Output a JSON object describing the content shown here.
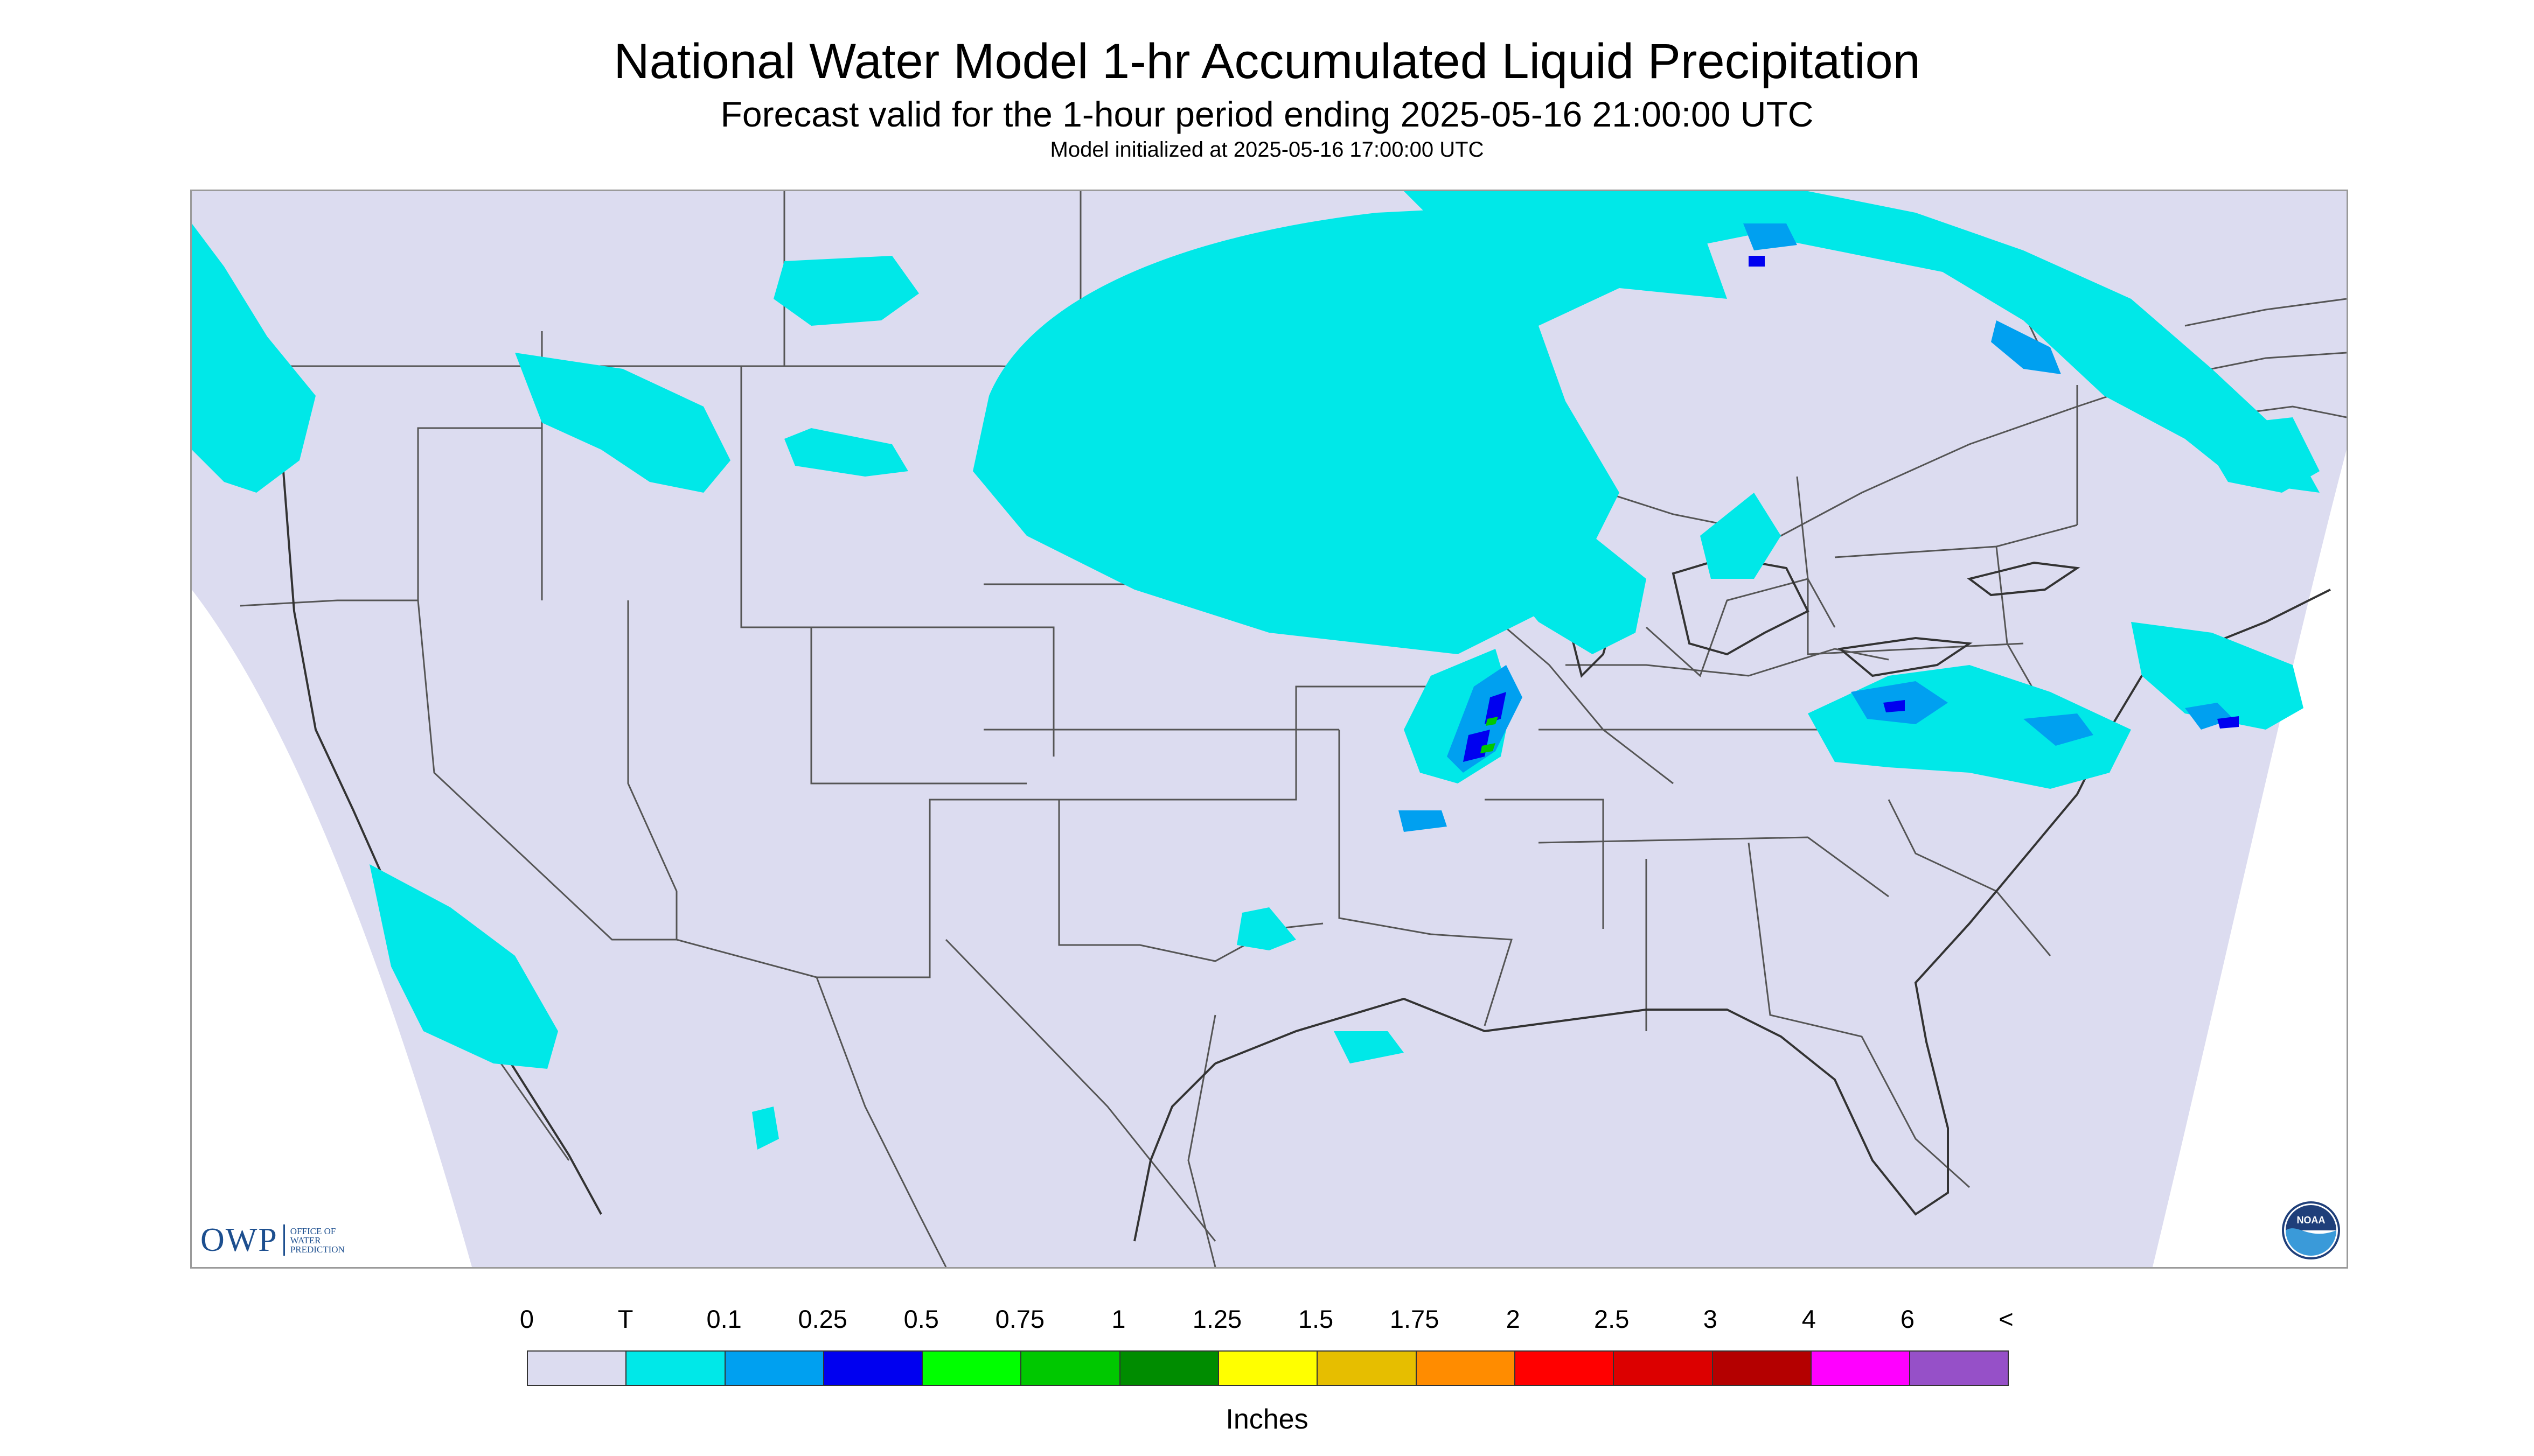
{
  "title": "National Water Model 1-hr Accumulated Liquid Precipitation",
  "subtitle": "Forecast valid for the 1-hour period ending 2025-05-16 21:00:00 UTC",
  "init_line": "Model initialized at 2025-05-16 17:00:00 UTC",
  "logos": {
    "owp_text": "OWP",
    "owp_lines": [
      "OFFICE OF",
      "WATER",
      "PREDICTION"
    ],
    "noaa_text": "NOAA"
  },
  "legend": {
    "labels": [
      "0",
      "T",
      "0.1",
      "0.25",
      "0.5",
      "0.75",
      "1",
      "1.25",
      "1.5",
      "1.75",
      "2",
      "2.5",
      "3",
      "4",
      "6",
      "<"
    ],
    "colors": [
      "#dcdcf0",
      "#00e8e8",
      "#00a0f0",
      "#0000f0",
      "#00ff00",
      "#00c800",
      "#008c00",
      "#ffff00",
      "#e6be00",
      "#ff8c00",
      "#ff0000",
      "#dc0000",
      "#b40000",
      "#ff00ff",
      "#9650c8"
    ],
    "units": "Inches"
  },
  "map_colors": {
    "background": "#dcdcf0",
    "border": "#555555",
    "light": "#00e8e8",
    "medium": "#00a0f0",
    "heavy": "#0000f0",
    "green": "#00c800"
  }
}
